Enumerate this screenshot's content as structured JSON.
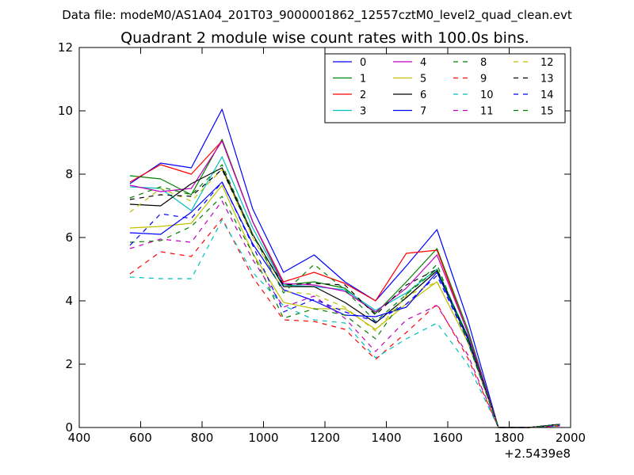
{
  "suptitle": "Data file: modeM0/AS1A04_201T03_9000001862_12557cztM0_level2_quad_clean.evt",
  "chart_data": {
    "type": "line",
    "title": "Quadrant 2 module wise count rates with 100.0s bins.",
    "xlabel": "",
    "ylabel": "",
    "x_offset_label": "+2.5439e8",
    "xlim": [
      400,
      2000
    ],
    "ylim": [
      0,
      12
    ],
    "xticks": [
      400,
      600,
      800,
      1000,
      1200,
      1400,
      1600,
      1800,
      2000
    ],
    "yticks": [
      0,
      2,
      4,
      6,
      8,
      10,
      12
    ],
    "grid": false,
    "legend_position": "top-right",
    "legend_columns": 4,
    "x": [
      565,
      665,
      765,
      865,
      965,
      1065,
      1165,
      1265,
      1365,
      1465,
      1565,
      1665,
      1765,
      1865,
      1965
    ],
    "series": [
      {
        "name": "0",
        "color": "#0000ff",
        "style": "solid",
        "values": [
          7.7,
          8.35,
          8.2,
          10.05,
          6.9,
          4.9,
          5.45,
          4.6,
          4.0,
          5.1,
          6.25,
          3.4,
          0.0,
          0.0,
          0.1
        ]
      },
      {
        "name": "1",
        "color": "#008000",
        "style": "solid",
        "values": [
          7.95,
          7.85,
          7.35,
          9.1,
          6.5,
          4.5,
          4.6,
          4.4,
          3.6,
          4.6,
          5.65,
          3.1,
          0.0,
          0.0,
          0.1
        ]
      },
      {
        "name": "2",
        "color": "#ff0000",
        "style": "solid",
        "values": [
          7.75,
          8.3,
          8.0,
          9.05,
          6.5,
          4.6,
          4.9,
          4.55,
          4.0,
          5.5,
          5.6,
          3.0,
          0.0,
          0.0,
          0.1
        ]
      },
      {
        "name": "3",
        "color": "#00bfbf",
        "style": "solid",
        "values": [
          7.6,
          7.55,
          6.85,
          8.55,
          6.3,
          4.5,
          4.45,
          4.35,
          3.7,
          4.25,
          5.0,
          2.9,
          0.0,
          0.0,
          0.08
        ]
      },
      {
        "name": "4",
        "color": "#bf00bf",
        "style": "solid",
        "values": [
          7.65,
          7.45,
          7.55,
          9.05,
          6.5,
          4.55,
          4.5,
          4.3,
          3.65,
          4.4,
          5.45,
          3.0,
          0.0,
          0.0,
          0.1
        ]
      },
      {
        "name": "5",
        "color": "#bfbf00",
        "style": "solid",
        "values": [
          6.3,
          6.35,
          6.45,
          7.65,
          5.5,
          3.95,
          3.75,
          3.75,
          3.1,
          3.9,
          4.6,
          2.7,
          0.0,
          0.0,
          0.08
        ]
      },
      {
        "name": "6",
        "color": "#000000",
        "style": "solid",
        "values": [
          7.05,
          7.0,
          7.7,
          8.2,
          6.1,
          4.45,
          4.45,
          3.95,
          3.3,
          4.1,
          4.95,
          2.85,
          0.0,
          0.0,
          0.1
        ]
      },
      {
        "name": "7",
        "color": "#0000ff",
        "style": "solid",
        "values": [
          6.15,
          6.1,
          6.8,
          7.75,
          5.8,
          4.35,
          4.0,
          3.55,
          3.5,
          3.8,
          4.9,
          2.8,
          0.0,
          0.0,
          0.1
        ]
      },
      {
        "name": "8",
        "color": "#008000",
        "style": "dashed",
        "values": [
          5.85,
          5.9,
          6.35,
          7.3,
          5.5,
          3.45,
          3.75,
          3.55,
          2.8,
          4.2,
          5.15,
          2.7,
          0.0,
          0.0,
          0.1
        ]
      },
      {
        "name": "9",
        "color": "#ff0000",
        "style": "dashed",
        "values": [
          4.85,
          5.55,
          5.4,
          6.6,
          4.75,
          3.4,
          3.35,
          3.1,
          2.15,
          3.0,
          3.9,
          2.2,
          0.0,
          0.0,
          0.05
        ]
      },
      {
        "name": "10",
        "color": "#00bfbf",
        "style": "dashed",
        "values": [
          4.75,
          4.7,
          4.7,
          6.55,
          4.9,
          3.85,
          3.4,
          3.3,
          2.2,
          2.8,
          3.3,
          2.0,
          0.0,
          0.0,
          0.05
        ]
      },
      {
        "name": "11",
        "color": "#bf00bf",
        "style": "dashed",
        "values": [
          5.65,
          5.95,
          5.85,
          7.15,
          5.3,
          3.8,
          4.15,
          3.45,
          2.4,
          3.4,
          3.85,
          2.3,
          0.0,
          0.0,
          0.05
        ]
      },
      {
        "name": "12",
        "color": "#bfbf00",
        "style": "dashed",
        "values": [
          6.8,
          7.55,
          7.15,
          8.15,
          6.0,
          4.3,
          4.2,
          3.8,
          3.05,
          4.15,
          4.6,
          2.7,
          0.0,
          0.0,
          0.08
        ]
      },
      {
        "name": "13",
        "color": "#000000",
        "style": "dashed",
        "values": [
          7.2,
          7.35,
          7.3,
          8.15,
          6.05,
          4.5,
          4.55,
          4.5,
          3.55,
          4.5,
          5.0,
          2.85,
          0.0,
          0.0,
          0.1
        ]
      },
      {
        "name": "14",
        "color": "#0000ff",
        "style": "dashed",
        "values": [
          5.75,
          6.75,
          6.6,
          7.75,
          5.75,
          3.65,
          4.05,
          3.65,
          3.35,
          3.9,
          4.8,
          2.75,
          0.0,
          0.0,
          0.08
        ]
      },
      {
        "name": "15",
        "color": "#008000",
        "style": "dashed",
        "values": [
          7.25,
          7.6,
          7.35,
          8.3,
          6.1,
          4.25,
          5.15,
          4.35,
          3.35,
          4.2,
          5.0,
          2.8,
          0.0,
          0.0,
          0.1
        ]
      }
    ]
  }
}
